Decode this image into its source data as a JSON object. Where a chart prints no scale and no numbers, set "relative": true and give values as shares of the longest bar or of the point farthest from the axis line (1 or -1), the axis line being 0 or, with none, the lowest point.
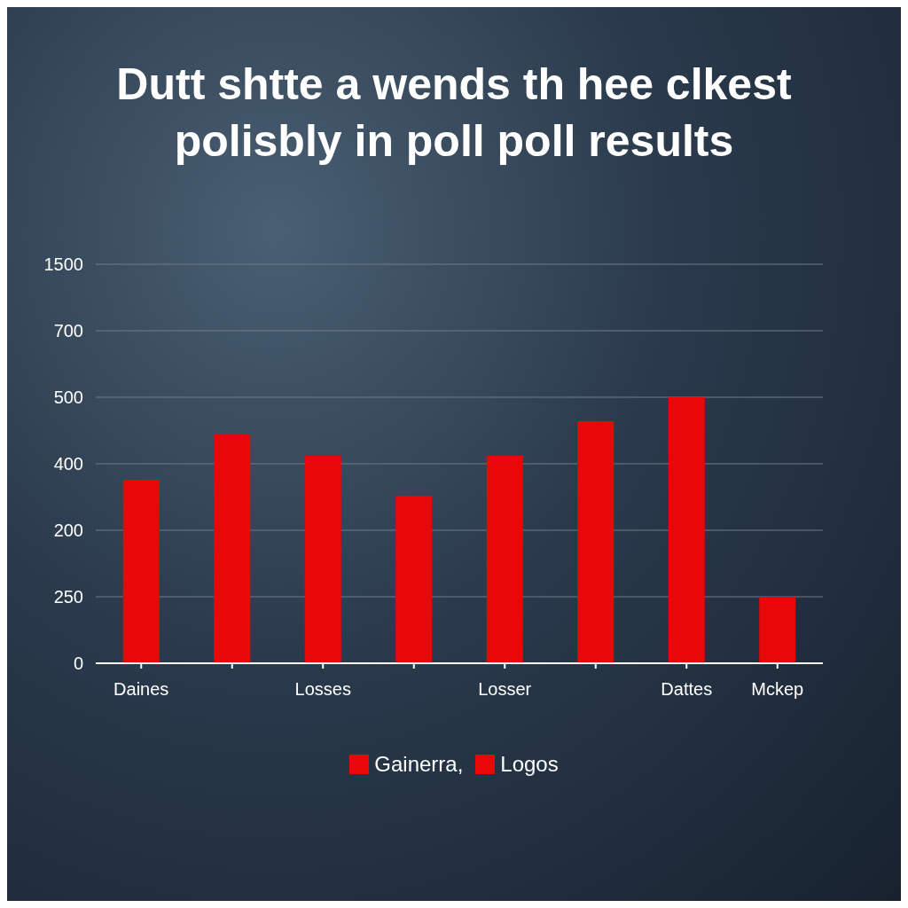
{
  "chart_data": {
    "type": "bar",
    "title": "Dutt shtte a wends th hee clkest polisbly in poll poll results",
    "categories": [
      "Daines",
      null,
      "Losses",
      null,
      "Losser",
      null,
      "Dattes",
      "Mckep"
    ],
    "series": [
      {
        "name": "Gainerra,",
        "color": "#e80808",
        "values": [
          0.69,
          null,
          0.78,
          null,
          0.78,
          null,
          1.0,
          null
        ]
      },
      {
        "name": "Logos",
        "color": "#e80808",
        "values": [
          null,
          0.86,
          null,
          0.63,
          null,
          0.91,
          null,
          0.25
        ]
      }
    ],
    "stacked": true,
    "relative": true,
    "annotations": [
      "1500",
      "700",
      "500",
      "400",
      "200",
      "250",
      "0"
    ],
    "grid": "y",
    "legend": "bottom"
  }
}
